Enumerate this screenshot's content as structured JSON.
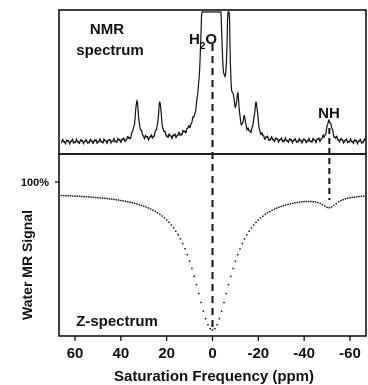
{
  "chart_data": [
    {
      "type": "line",
      "panel": "top",
      "labels": {
        "panel_line1": "NMR",
        "panel_line2": "spectrum",
        "water_main": "H",
        "water_sub": "2",
        "water_end": "O",
        "amide": "NH"
      },
      "x_unit": "ppm",
      "x_reversed": true,
      "xlim": [
        67,
        -67
      ],
      "peaks": [
        {
          "x": 33,
          "height": 0.32,
          "width": 1.0
        },
        {
          "x": 23,
          "height": 0.3,
          "width": 0.9
        },
        {
          "x": 4,
          "height": 1.05,
          "width": 1.2
        },
        {
          "x": -3,
          "height": 1.15,
          "width": 0.8
        },
        {
          "x": -7,
          "height": 1.2,
          "width": 0.6
        },
        {
          "x": -9,
          "height": 0.15,
          "width": 0.6
        },
        {
          "x": -11,
          "height": 0.28,
          "width": 0.7
        },
        {
          "x": -14,
          "height": 0.12,
          "width": 0.7
        },
        {
          "x": -19,
          "height": 0.3,
          "width": 0.9
        },
        {
          "x": -51,
          "height": 0.18,
          "width": 1.3
        }
      ],
      "water_linewidth": 2.5,
      "water_amplitude": 1.0
    },
    {
      "type": "scatter",
      "panel": "bottom",
      "labels": {
        "panel": "Z-spectrum",
        "ylabel": "Water MR Signal",
        "y_tick": "100%"
      },
      "xlim": [
        67,
        -67
      ],
      "ylim": [
        0,
        1.05
      ],
      "y_tick_value": 1.0,
      "model": {
        "water_center": 0,
        "water_depth": 1.0,
        "water_width": 10,
        "amide_center": -51,
        "amide_depth": 0.07,
        "amide_width": 4,
        "baseline": 0.93
      },
      "point_spacing_ppm": 1.0
    }
  ],
  "axis": {
    "xlabel": "Saturation Frequency (ppm)",
    "ticks": [
      "60",
      "40",
      "20",
      "0",
      "-20",
      "-40",
      "-60"
    ],
    "tick_values": [
      60,
      40,
      20,
      0,
      -20,
      -40,
      -60
    ]
  },
  "colors": {
    "line": "#111111",
    "marker": "#222222",
    "frame": "#000000"
  }
}
